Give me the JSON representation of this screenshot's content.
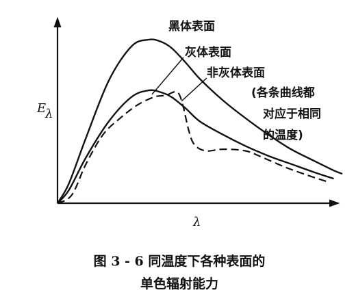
{
  "chart_data": {
    "type": "line",
    "y_axis_label": "E",
    "y_axis_label_subscript": "λ",
    "x_axis_label": "λ",
    "grid": false,
    "series": [
      {
        "name": "黑体表面",
        "style": "solid",
        "color": "#111111",
        "x": [
          0,
          0.04,
          0.1,
          0.18,
          0.26,
          0.32,
          0.36,
          0.4,
          0.45,
          0.5,
          0.58,
          0.66,
          0.74,
          0.82,
          0.9,
          0.97,
          1.0
        ],
        "y": [
          0,
          0.12,
          0.4,
          0.75,
          0.96,
          1.0,
          0.99,
          0.95,
          0.86,
          0.76,
          0.63,
          0.52,
          0.42,
          0.33,
          0.26,
          0.2,
          0.18
        ]
      },
      {
        "name": "灰体表面",
        "style": "solid",
        "color": "#111111",
        "x": [
          0,
          0.04,
          0.1,
          0.18,
          0.26,
          0.32,
          0.36,
          0.4,
          0.45,
          0.5,
          0.58,
          0.66,
          0.74,
          0.82,
          0.9,
          0.97
        ],
        "y": [
          0,
          0.08,
          0.28,
          0.5,
          0.65,
          0.69,
          0.68,
          0.65,
          0.58,
          0.5,
          0.42,
          0.35,
          0.29,
          0.24,
          0.19,
          0.15
        ]
      },
      {
        "name": "非灰体表面",
        "style": "dashed",
        "color": "#111111",
        "x": [
          0,
          0.05,
          0.1,
          0.16,
          0.22,
          0.28,
          0.34,
          0.38,
          0.42,
          0.44,
          0.46,
          0.48,
          0.52,
          0.58,
          0.66,
          0.72,
          0.8,
          0.88,
          0.95
        ],
        "y": [
          0,
          0.05,
          0.24,
          0.42,
          0.52,
          0.6,
          0.65,
          0.66,
          0.68,
          0.6,
          0.45,
          0.36,
          0.32,
          0.33,
          0.32,
          0.28,
          0.22,
          0.17,
          0.13
        ]
      }
    ],
    "annotations": [
      {
        "text": "(各条曲线都",
        "target": "非灰体表面"
      },
      {
        "text": "对应于相同",
        "target": "非灰体表面"
      },
      {
        "text": "的温度)",
        "target": "非灰体表面"
      }
    ],
    "caption_line1": "图 3 - 6    同温度下各种表面的",
    "caption_line2": "单色辐射能力"
  }
}
